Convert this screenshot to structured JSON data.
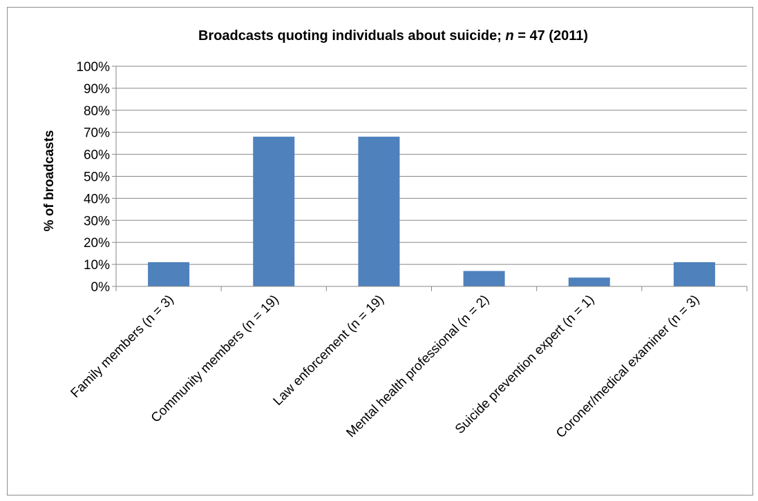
{
  "chart_data": {
    "type": "bar",
    "title_parts": [
      "Broadcasts quoting individuals about suicide; ",
      "n",
      " = 47 (2011)"
    ],
    "xlabel": "",
    "ylabel": "% of broadcasts",
    "categories": [
      "Family members (n = 3)",
      "Community members (n = 19)",
      "Law enforcement (n = 19)",
      "Mental health professional (n = 2)",
      "Suicide prevention expert (n = 1)",
      "Coroner/medical examiner (n = 3)"
    ],
    "values": [
      11,
      68,
      68,
      7,
      4,
      11
    ],
    "yticks": [
      "0%",
      "10%",
      "20%",
      "30%",
      "40%",
      "50%",
      "60%",
      "70%",
      "80%",
      "90%",
      "100%"
    ],
    "ylim": [
      0,
      100
    ],
    "grid": true,
    "legend": "none",
    "bar_color": "#4f81bd"
  }
}
